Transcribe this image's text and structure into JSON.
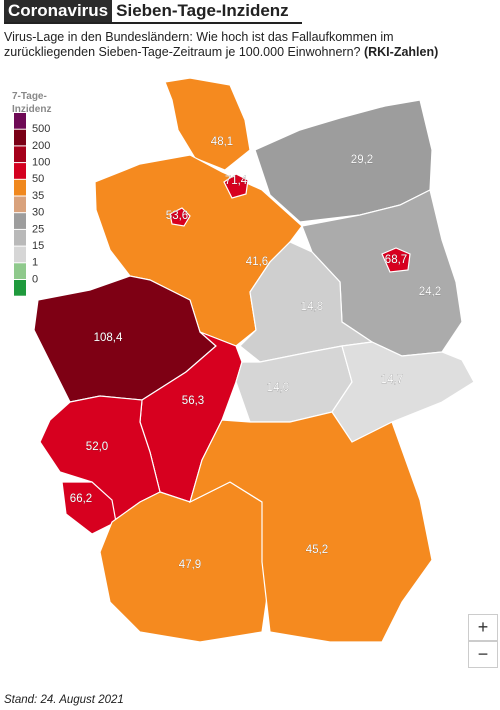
{
  "header": {
    "tag": "Coronavirus",
    "title": "Sieben-Tage-Inzidenz"
  },
  "subtitle": "Virus-Lage in den Bundesländern: Wie hoch ist das Fallaufkommen im zurückliegenden Sieben-Tage-Zeitraum je 100.000 Einwohnern?",
  "source": "(RKI-Zahlen)",
  "legend": {
    "title": "7-Tage-Inzidenz",
    "labels": [
      "500",
      "200",
      "100",
      "50",
      "35",
      "30",
      "25",
      "15",
      "1",
      "0"
    ],
    "colors": [
      "#6e0a55",
      "#7a0016",
      "#a5001a",
      "#d4001f",
      "#f0881e",
      "#d9a27c",
      "#9d9d9d",
      "#b9b9b9",
      "#d6d6d6",
      "#8fc98c",
      "#1f9a3d"
    ]
  },
  "states": [
    {
      "label": "48,1",
      "color": "#f58a1f"
    },
    {
      "label": "29,2",
      "color": "#9d9d9d"
    },
    {
      "label": "41,6",
      "color": "#f58a1f"
    },
    {
      "label": "24,2",
      "color": "#ababab"
    },
    {
      "label": "14,8",
      "color": "#cfcfcf"
    },
    {
      "label": "108,4",
      "color": "#7e0014"
    },
    {
      "label": "56,3",
      "color": "#d7001f"
    },
    {
      "label": "14,0",
      "color": "#d6d6d6"
    },
    {
      "label": "14,7",
      "color": "#dedede"
    },
    {
      "label": "52,0",
      "color": "#d7001f"
    },
    {
      "label": "66,2",
      "color": "#d7001f"
    },
    {
      "label": "47,9",
      "color": "#f58a1f"
    },
    {
      "label": "45,2",
      "color": "#f58a1f"
    },
    {
      "label": "71,4",
      "color": "#d7001f"
    },
    {
      "label": "53,6",
      "color": "#d7001f"
    },
    {
      "label": "68,7",
      "color": "#d7001f"
    }
  ],
  "zoom": {
    "in": "+",
    "out": "−"
  },
  "footer": "Stand: 24. August 2021"
}
